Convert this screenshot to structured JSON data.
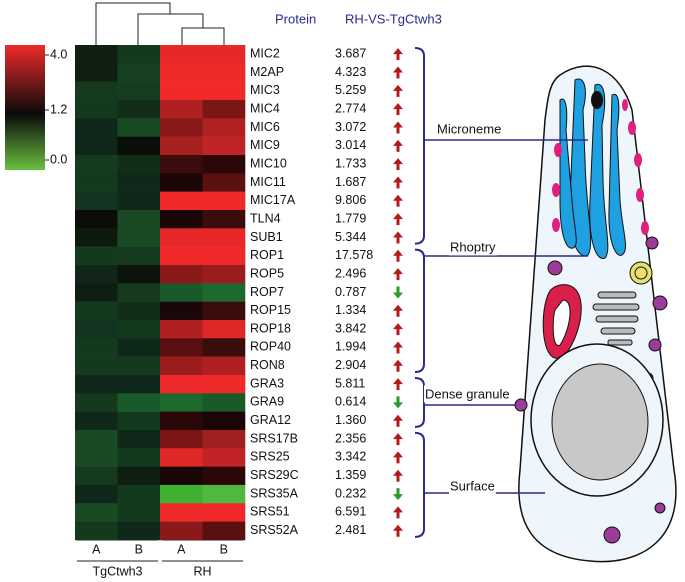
{
  "header": {
    "protein": "Protein",
    "ratio": "RH-VS-TgCtwh3"
  },
  "colorbar": {
    "ticks": [
      "4.0",
      "1.2",
      "0.0"
    ],
    "colors": [
      "#ee2a2a",
      "#0a0a0a",
      "#6ac040"
    ]
  },
  "columns": {
    "groups": [
      {
        "label": "TgCtwh3",
        "samples": [
          "A",
          "B"
        ]
      },
      {
        "label": "RH",
        "samples": [
          "A",
          "B"
        ]
      }
    ]
  },
  "arrow_colors": {
    "up": "#b01c1c",
    "down": "#2a9a2a"
  },
  "groups": [
    {
      "label": "Microneme",
      "proteins": [
        {
          "name": "MIC2",
          "ratio": "3.687",
          "cells": [
            "#102010",
            "#143a1e",
            "#e82828",
            "#e82828"
          ]
        },
        {
          "name": "M2AP",
          "ratio": "4.323",
          "cells": [
            "#0e1e10",
            "#16401f",
            "#ee2a2a",
            "#ee2a2a"
          ]
        },
        {
          "name": "MIC3",
          "ratio": "5.259",
          "cells": [
            "#153a1e",
            "#163d1e",
            "#f02a2a",
            "#f02a2a"
          ]
        },
        {
          "name": "MIC4",
          "ratio": "2.774",
          "cells": [
            "#143a1e",
            "#122e18",
            "#b02020",
            "#7a1616"
          ]
        },
        {
          "name": "MIC6",
          "ratio": "3.072",
          "cells": [
            "#10281a",
            "#1a4a24",
            "#8a1a1a",
            "#b02222"
          ]
        },
        {
          "name": "MIC9",
          "ratio": "3.014",
          "cells": [
            "#10261a",
            "#0a0f0a",
            "#a82020",
            "#c02424"
          ]
        },
        {
          "name": "MIC10",
          "ratio": "1.733",
          "cells": [
            "#153a1e",
            "#122e18",
            "#3a0c0c",
            "#2a0808"
          ]
        },
        {
          "name": "MIC11",
          "ratio": "1.687",
          "cells": [
            "#143a1e",
            "#10281a",
            "#1a0606",
            "#5a1010"
          ]
        },
        {
          "name": "MIC17A",
          "ratio": "9.806",
          "cells": [
            "#133520",
            "#10281a",
            "#f02a2a",
            "#f02a2a"
          ]
        },
        {
          "name": "TLN4",
          "ratio": "1.779",
          "cells": [
            "#0c0c08",
            "#1a4a24",
            "#1a0606",
            "#3a0c0c"
          ]
        },
        {
          "name": "SUB1",
          "ratio": "5.344",
          "cells": [
            "#0e1a0e",
            "#1a4a24",
            "#e82828",
            "#e82828"
          ]
        }
      ]
    },
    {
      "label": "Rhoptry",
      "proteins": [
        {
          "name": "ROP1",
          "ratio": "17.578",
          "cells": [
            "#143a1e",
            "#153a1e",
            "#f02a2a",
            "#f02a2a"
          ]
        },
        {
          "name": "ROP5",
          "ratio": "2.496",
          "cells": [
            "#10261a",
            "#0c140c",
            "#8a1a1a",
            "#9a1c1c"
          ]
        },
        {
          "name": "ROP7",
          "ratio": "0.787",
          "cells": [
            "#0e1e10",
            "#153a1e",
            "#1a5a2a",
            "#1e6a2e"
          ]
        },
        {
          "name": "ROP15",
          "ratio": "1.334",
          "cells": [
            "#143a1e",
            "#122e18",
            "#1a0808",
            "#3a0c0c"
          ]
        },
        {
          "name": "ROP18",
          "ratio": "3.842",
          "cells": [
            "#133520",
            "#143a1e",
            "#b02020",
            "#e02828"
          ]
        },
        {
          "name": "ROP40",
          "ratio": "1.994",
          "cells": [
            "#143a1e",
            "#10281a",
            "#5a1010",
            "#3a0c0c"
          ]
        },
        {
          "name": "RON8",
          "ratio": "2.904",
          "cells": [
            "#143a1e",
            "#143a1e",
            "#9a1c1c",
            "#b02020"
          ]
        }
      ]
    },
    {
      "label": "Dense granule",
      "proteins": [
        {
          "name": "GRA3",
          "ratio": "5.811",
          "cells": [
            "#10281a",
            "#10281a",
            "#f02a2a",
            "#f02a2a"
          ]
        },
        {
          "name": "GRA9",
          "ratio": "0.614",
          "cells": [
            "#143a1e",
            "#1a5a2a",
            "#1e6a2e",
            "#1a5a2a"
          ]
        },
        {
          "name": "GRA12",
          "ratio": "1.360",
          "cells": [
            "#10281a",
            "#143a1e",
            "#2a0808",
            "#1a0606"
          ]
        }
      ]
    },
    {
      "label": "Surface",
      "proteins": [
        {
          "name": "SRS17B",
          "ratio": "2.356",
          "cells": [
            "#1a4a24",
            "#10281a",
            "#7a1616",
            "#a02020"
          ]
        },
        {
          "name": "SRS25",
          "ratio": "3.342",
          "cells": [
            "#1a4a24",
            "#143a1e",
            "#e02828",
            "#c02424"
          ]
        },
        {
          "name": "SRS29C",
          "ratio": "1.359",
          "cells": [
            "#153a1e",
            "#0e1e10",
            "#1a0606",
            "#2a0808"
          ]
        },
        {
          "name": "SRS35A",
          "ratio": "0.232",
          "cells": [
            "#10281a",
            "#143a1e",
            "#40b030",
            "#50b840"
          ]
        },
        {
          "name": "SRS51",
          "ratio": "6.591",
          "cells": [
            "#1a4a24",
            "#143a1e",
            "#f02a2a",
            "#f02a2a"
          ]
        },
        {
          "name": "SRS52A",
          "ratio": "2.481",
          "cells": [
            "#143a1e",
            "#10281a",
            "#8a1a1a",
            "#5a1010"
          ]
        }
      ]
    }
  ]
}
